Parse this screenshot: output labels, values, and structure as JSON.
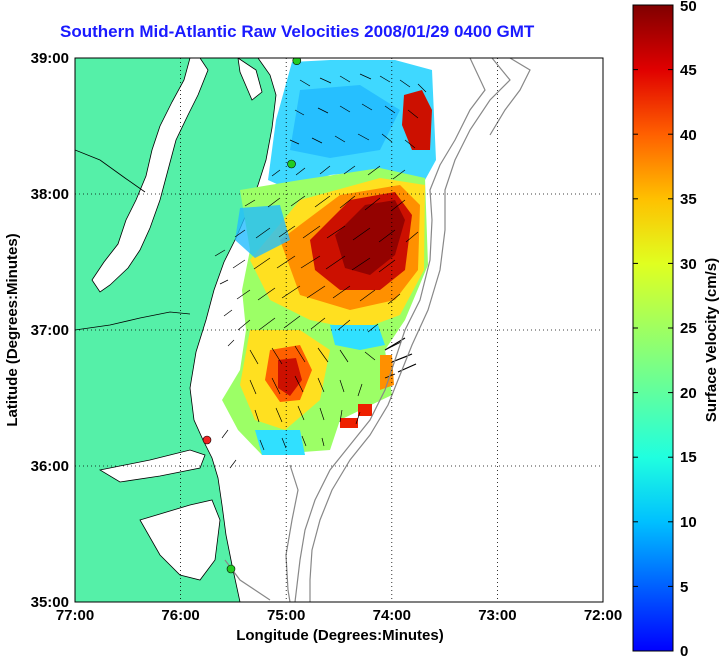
{
  "title": "Southern Mid-Atlantic Raw Velocities 2008/01/29 0400 GMT",
  "map": {
    "xlabel": "Longitude (Degrees:Minutes)",
    "ylabel": "Latitude (Degrees:Minutes)",
    "x_ticks": [
      "77:00",
      "76:00",
      "75:00",
      "74:00",
      "73:00",
      "72:00"
    ],
    "y_ticks": [
      "39:00",
      "38:00",
      "37:00",
      "36:00",
      "35:00"
    ],
    "lon_range": [
      -77,
      -72
    ],
    "lat_range": [
      35,
      39
    ],
    "grid": true,
    "grid_style": "dotted",
    "land_color": "#55f0a8",
    "water_color": "#ffffff",
    "bathymetry_color": "#888888",
    "vector_color": "#000000",
    "station_markers": [
      {
        "lon": -75.1,
        "lat": 38.98,
        "color": "#22cc22"
      },
      {
        "lon": -75.15,
        "lat": 38.22,
        "color": "#22cc22"
      },
      {
        "lon": -75.75,
        "lat": 36.19,
        "color": "#ee2222"
      },
      {
        "lon": -75.47,
        "lat": 35.24,
        "color": "#22cc22"
      }
    ]
  },
  "colorbar": {
    "label": "Surface Velocity (cm/s)",
    "ticks": [
      "50",
      "45",
      "40",
      "35",
      "30",
      "25",
      "20",
      "15",
      "10",
      "5",
      "0"
    ],
    "min": 0,
    "max": 50,
    "colormap": "jet"
  }
}
